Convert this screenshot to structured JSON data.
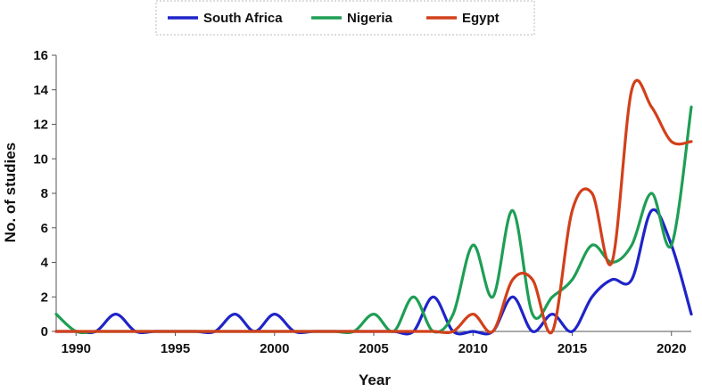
{
  "chart_data": {
    "type": "line",
    "xlabel": "Year",
    "ylabel": "No. of studies",
    "xlim": [
      1989,
      2021
    ],
    "ylim": [
      0,
      16
    ],
    "x_ticks": [
      "1990",
      "1995",
      "2000",
      "2005",
      "2010",
      "2015",
      "2020"
    ],
    "y_ticks": [
      "0",
      "2",
      "4",
      "6",
      "8",
      "10",
      "12",
      "14",
      "16"
    ],
    "legend_position": "top-center",
    "grid": false,
    "x": [
      1989,
      1990,
      1991,
      1992,
      1993,
      1994,
      1995,
      1996,
      1997,
      1998,
      1999,
      2000,
      2001,
      2002,
      2003,
      2004,
      2005,
      2006,
      2007,
      2008,
      2009,
      2010,
      2011,
      2012,
      2013,
      2014,
      2015,
      2016,
      2017,
      2018,
      2019,
      2020,
      2021
    ],
    "series": [
      {
        "name": "South Africa",
        "color": "#1f24c8",
        "values": [
          0,
          0,
          0,
          1,
          0,
          0,
          0,
          0,
          0,
          1,
          0,
          1,
          0,
          0,
          0,
          0,
          0,
          0,
          0,
          2,
          0,
          0,
          0,
          2,
          0,
          1,
          0,
          2,
          3,
          3,
          7,
          5,
          1
        ]
      },
      {
        "name": "Nigeria",
        "color": "#1e9e55",
        "values": [
          1,
          0,
          0,
          0,
          0,
          0,
          0,
          0,
          0,
          0,
          0,
          0,
          0,
          0,
          0,
          0,
          1,
          0,
          2,
          0,
          1,
          5,
          2,
          7,
          1,
          2,
          3,
          5,
          4,
          5,
          8,
          5,
          13
        ]
      },
      {
        "name": "Egypt",
        "color": "#d2401a",
        "values": [
          0,
          0,
          0,
          0,
          0,
          0,
          0,
          0,
          0,
          0,
          0,
          0,
          0,
          0,
          0,
          0,
          0,
          0,
          0,
          0,
          0,
          1,
          0,
          3,
          3,
          0,
          7,
          8,
          4,
          14,
          13,
          11,
          11
        ]
      }
    ]
  }
}
